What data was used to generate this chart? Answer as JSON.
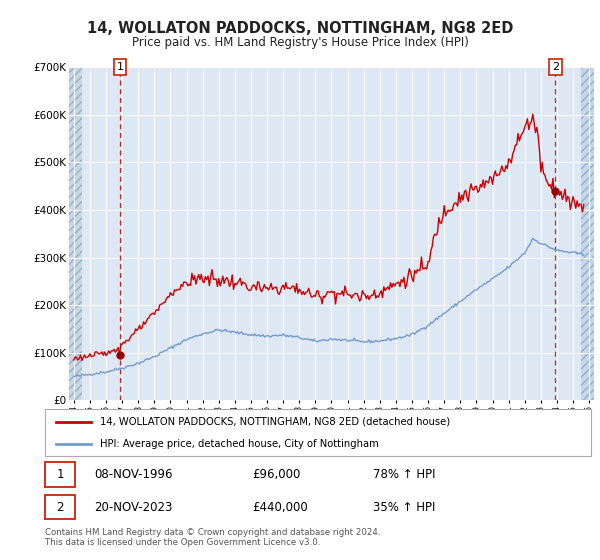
{
  "title": "14, WOLLATON PADDOCKS, NOTTINGHAM, NG8 2ED",
  "subtitle": "Price paid vs. HM Land Registry's House Price Index (HPI)",
  "legend_line1": "14, WOLLATON PADDOCKS, NOTTINGHAM, NG8 2ED (detached house)",
  "legend_line2": "HPI: Average price, detached house, City of Nottingham",
  "transaction1_date": "08-NOV-1996",
  "transaction1_price": 96000,
  "transaction1_label": "78% ↑ HPI",
  "transaction2_date": "20-NOV-2023",
  "transaction2_price": 440000,
  "transaction2_label": "35% ↑ HPI",
  "footer": "Contains HM Land Registry data © Crown copyright and database right 2024.\nThis data is licensed under the Open Government Licence v3.0.",
  "red_line_color": "#cc0000",
  "blue_line_color": "#7799cc",
  "vline_color": "#cc0000",
  "plot_bg": "#dde8f4",
  "ylim": [
    0,
    700000
  ],
  "xlim_start": 1993.7,
  "xlim_end": 2026.3,
  "transaction1_x": 1996.87,
  "transaction2_x": 2023.9
}
